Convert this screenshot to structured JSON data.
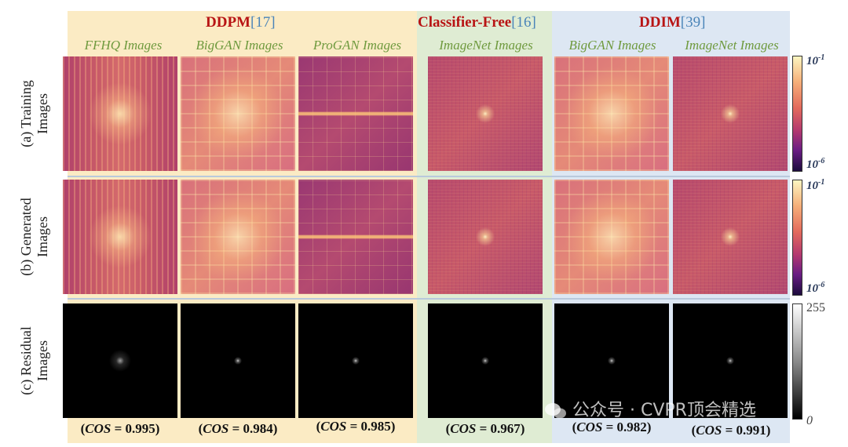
{
  "groups": [
    {
      "name": "DDPM",
      "ref": "[17]",
      "color": "#fbebc4"
    },
    {
      "name": "Classifier-Free",
      "ref": "[16]",
      "color": "#dfecd3"
    },
    {
      "name": "DDIM",
      "ref": "[39]",
      "color": "#dde7f3"
    }
  ],
  "columns": [
    "FFHQ Images",
    "BigGAN Images",
    "ProGAN Images",
    "ImageNet Images",
    "BigGAN Images",
    "ImageNet Images"
  ],
  "rows": [
    {
      "letter": "(a)",
      "line1": "Training",
      "line2": "Images"
    },
    {
      "letter": "(b)",
      "line1": "Generated",
      "line2": "Images"
    },
    {
      "letter": "(c)",
      "line1": "Residual",
      "line2": "Images"
    }
  ],
  "cos_label": "COS",
  "cos_values": [
    "0.995",
    "0.984",
    "0.985",
    "0.967",
    "0.982",
    "0.991"
  ],
  "colorbars": {
    "spectrum_top": "10",
    "spectrum_top_exp": "-1",
    "spectrum_bottom": "10",
    "spectrum_bottom_exp": "-6",
    "residual_top": "255",
    "residual_bottom": "0"
  },
  "watermark": "公众号 · CVPR顶会精选"
}
